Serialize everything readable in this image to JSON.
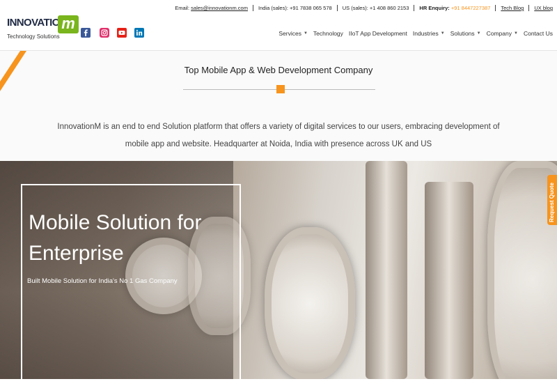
{
  "brand": {
    "logo_word": "INNOVATION",
    "logo_letter": "m",
    "tagline": "Technology Solutions",
    "accent_color": "#f7941d",
    "logo_green": "#7ab51d"
  },
  "social": [
    {
      "name": "facebook",
      "icon": "facebook-icon",
      "color": "#3b5998"
    },
    {
      "name": "instagram",
      "icon": "instagram-icon",
      "color": "#e1306c"
    },
    {
      "name": "youtube",
      "icon": "youtube-icon",
      "color": "#e62117"
    },
    {
      "name": "linkedin",
      "icon": "linkedin-icon",
      "color": "#0077b5"
    }
  ],
  "topbar": {
    "email_label": "Email:",
    "email": "sales@innovationm.com",
    "india_label": "India (sales):",
    "india_phone": "+91 7838 065 578",
    "us_label": "US (sales):",
    "us_phone": "+1 408 860 2153",
    "hr_label": "HR Enquiry:",
    "hr_phone": "+91 8447227387",
    "tech_blog": "Tech Blog",
    "ux_blog": "UX blog"
  },
  "nav": {
    "services": "Services",
    "technology": "Technology",
    "iot": "IIoT App Development",
    "industries": "Industries",
    "solutions": "Solutions",
    "company": "Company",
    "contact": "Contact Us"
  },
  "intro": {
    "title": "Top Mobile App & Web Development Company",
    "description": "InnovationM is an end to end Solution platform that offers a variety of digital services to our users, embracing development of mobile app and website. Headquarter at Noida, India with presence across UK and US"
  },
  "hero": {
    "title": "Mobile Solution for Enterprise",
    "subtitle": "Built Mobile Solution for India's No 1 Gas Company"
  },
  "request_quote": "Request Quote"
}
